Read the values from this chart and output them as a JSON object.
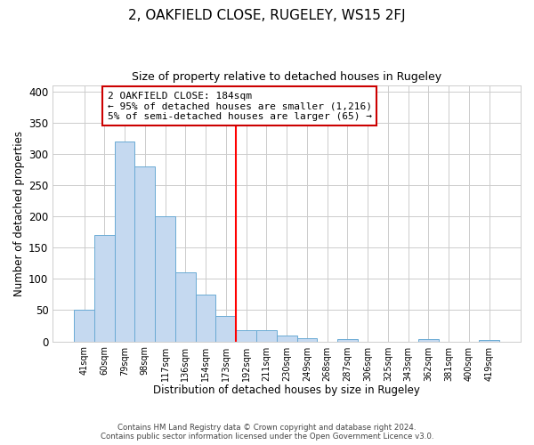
{
  "title": "2, OAKFIELD CLOSE, RUGELEY, WS15 2FJ",
  "subtitle": "Size of property relative to detached houses in Rugeley",
  "xlabel": "Distribution of detached houses by size in Rugeley",
  "ylabel": "Number of detached properties",
  "bar_labels": [
    "41sqm",
    "60sqm",
    "79sqm",
    "98sqm",
    "117sqm",
    "136sqm",
    "154sqm",
    "173sqm",
    "192sqm",
    "211sqm",
    "230sqm",
    "249sqm",
    "268sqm",
    "287sqm",
    "306sqm",
    "325sqm",
    "343sqm",
    "362sqm",
    "381sqm",
    "400sqm",
    "419sqm"
  ],
  "bar_heights": [
    50,
    170,
    320,
    280,
    200,
    110,
    75,
    40,
    18,
    18,
    10,
    5,
    0,
    4,
    0,
    0,
    0,
    4,
    0,
    0,
    2
  ],
  "bar_color": "#c5d9f0",
  "bar_edge_color": "#6aaad4",
  "vline_color": "red",
  "annotation_line1": "2 OAKFIELD CLOSE: 184sqm",
  "annotation_line2": "← 95% of detached houses are smaller (1,216)",
  "annotation_line3": "5% of semi-detached houses are larger (65) →",
  "annotation_box_color": "white",
  "annotation_box_edge": "#cc0000",
  "ylim": [
    0,
    410
  ],
  "yticks": [
    0,
    50,
    100,
    150,
    200,
    250,
    300,
    350,
    400
  ],
  "footer_line1": "Contains HM Land Registry data © Crown copyright and database right 2024.",
  "footer_line2": "Contains public sector information licensed under the Open Government Licence v3.0.",
  "bg_color": "white",
  "grid_color": "#cccccc"
}
